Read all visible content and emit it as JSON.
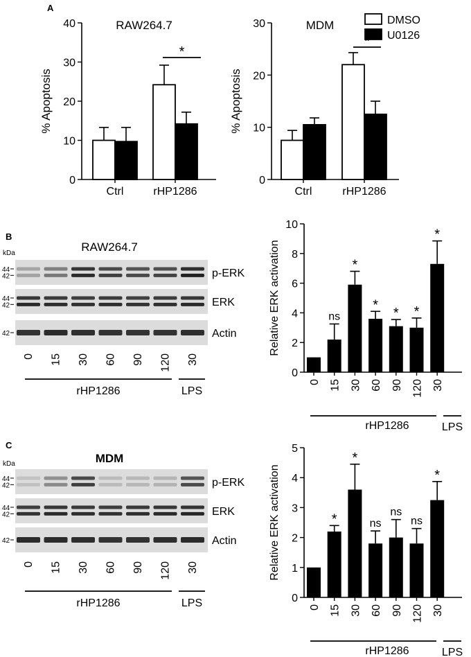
{
  "chart_data": [
    {
      "panel": "A",
      "type": "bar",
      "title": "RAW264.7",
      "ylabel": "% Apoptosis",
      "ylim": [
        0,
        40
      ],
      "yticks": [
        0,
        10,
        20,
        30,
        40
      ],
      "categories": [
        "Ctrl",
        "rHP1286"
      ],
      "series": [
        {
          "name": "DMSO",
          "fill": "#ffffff",
          "values": [
            10,
            24.2
          ],
          "errors": [
            3.3,
            5.0
          ]
        },
        {
          "name": "U0126",
          "fill": "#000000",
          "values": [
            9.7,
            14.2
          ],
          "errors": [
            3.6,
            3.0
          ]
        }
      ],
      "annotation": "*"
    },
    {
      "panel": "",
      "type": "bar",
      "title": "MDM",
      "ylabel": "% Apoptosis",
      "ylim": [
        0,
        30
      ],
      "yticks": [
        0,
        10,
        20,
        30
      ],
      "categories": [
        "Ctrl",
        "rHP1286"
      ],
      "series": [
        {
          "name": "DMSO",
          "fill": "#ffffff",
          "values": [
            7.5,
            22
          ],
          "errors": [
            1.9,
            2.3
          ]
        },
        {
          "name": "U0126",
          "fill": "#000000",
          "values": [
            10.5,
            12.5
          ],
          "errors": [
            1.3,
            2.5
          ]
        }
      ],
      "legend": [
        "DMSO",
        "U0126"
      ],
      "legend_position": "top-right",
      "annotation": "*"
    },
    {
      "panel": "B",
      "type": "bar",
      "ylabel": "Relative ERK activation",
      "ylim": [
        0,
        10
      ],
      "yticks": [
        0,
        2,
        4,
        6,
        8,
        10
      ],
      "categories": [
        "0",
        "15",
        "30",
        "60",
        "90",
        "120",
        "30"
      ],
      "values": [
        1,
        2.2,
        5.9,
        3.6,
        3.1,
        3.0,
        7.3
      ],
      "errors": [
        0,
        1.05,
        0.9,
        0.5,
        0.45,
        0.65,
        1.55
      ],
      "annotations": [
        "",
        "ns",
        "*",
        "*",
        "*",
        "*",
        "*"
      ],
      "group_labels": [
        "rHP1286",
        "LPS"
      ]
    },
    {
      "panel": "C",
      "type": "bar",
      "ylabel": "Relative ERK activation",
      "ylim": [
        0,
        5
      ],
      "yticks": [
        0,
        1,
        2,
        3,
        4,
        5
      ],
      "categories": [
        "0",
        "15",
        "30",
        "60",
        "90",
        "120",
        "30"
      ],
      "values": [
        1,
        2.2,
        3.6,
        1.8,
        2.0,
        1.8,
        3.25
      ],
      "errors": [
        0,
        0.2,
        0.85,
        0.42,
        0.6,
        0.5,
        0.62
      ],
      "annotations": [
        "",
        "*",
        "*",
        "ns",
        "ns",
        "ns",
        "*"
      ],
      "group_labels": [
        "rHP1286",
        "LPS"
      ]
    }
  ],
  "blots": [
    {
      "panel": "B",
      "title": "RAW264.7",
      "kda_label": "kDa",
      "rows": [
        {
          "label": "p-ERK",
          "markers": [
            "44",
            "42"
          ],
          "intensity": [
            0.22,
            0.45,
            0.9,
            0.78,
            0.72,
            0.76,
            0.95
          ]
        },
        {
          "label": "ERK",
          "markers": [
            "44",
            "42"
          ],
          "intensity": [
            0.9,
            0.88,
            0.86,
            0.88,
            0.85,
            0.87,
            0.9
          ]
        },
        {
          "label": "Actin",
          "markers": [
            "42"
          ],
          "intensity": [
            0.85,
            0.9,
            0.88,
            0.86,
            0.85,
            0.86,
            0.88
          ]
        }
      ],
      "lanes": [
        "0",
        "15",
        "30",
        "60",
        "90",
        "120",
        "30"
      ],
      "group_labels": [
        "rHP1286",
        "LPS"
      ]
    },
    {
      "panel": "C",
      "title": "MDM",
      "kda_label": "kDa",
      "rows": [
        {
          "label": "p-ERK",
          "markers": [
            "44",
            "42"
          ],
          "intensity": [
            0.04,
            0.35,
            0.78,
            0.08,
            0.1,
            0.12,
            0.72
          ]
        },
        {
          "label": "ERK",
          "markers": [
            "44",
            "42"
          ],
          "intensity": [
            0.85,
            0.9,
            0.88,
            0.86,
            0.88,
            0.9,
            0.92
          ]
        },
        {
          "label": "Actin",
          "markers": [
            "42"
          ],
          "intensity": [
            0.9,
            0.9,
            0.88,
            0.85,
            0.86,
            0.88,
            0.9
          ]
        }
      ],
      "lanes": [
        "0",
        "15",
        "30",
        "60",
        "90",
        "120",
        "30"
      ],
      "group_labels": [
        "rHP1286",
        "LPS"
      ]
    }
  ]
}
